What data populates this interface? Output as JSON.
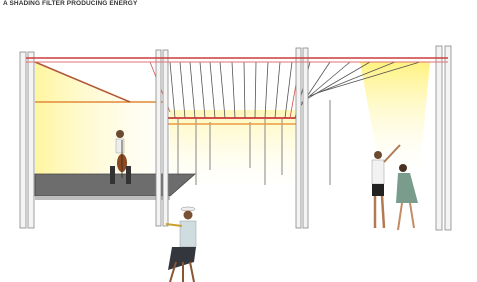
{
  "header": {
    "title": "A SHADING FILTER PRODUCING ENERGY"
  }
}
